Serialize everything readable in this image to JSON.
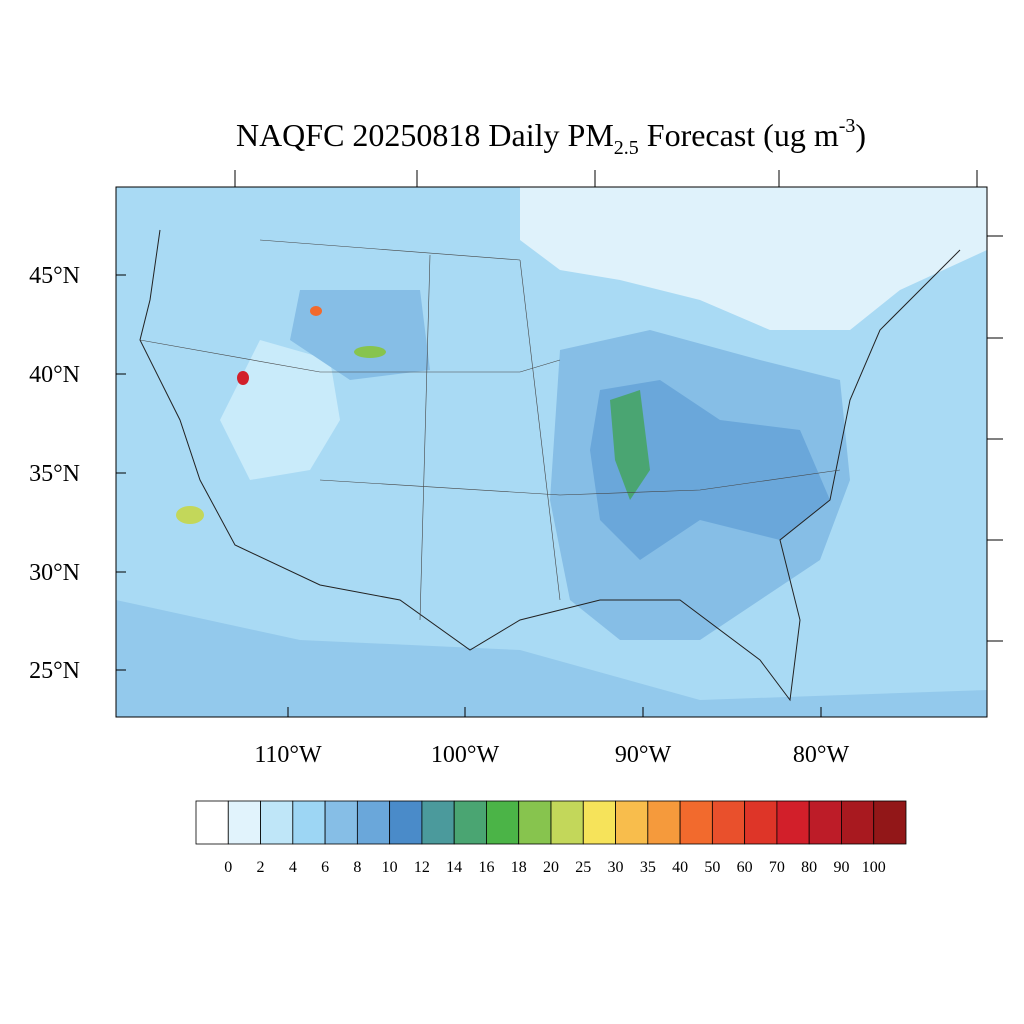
{
  "title": {
    "main": "NAQFC 20250818 Daily PM",
    "sub": "2.5",
    "mid": " Forecast (ug m",
    "sup": "-3",
    "end": ")"
  },
  "map": {
    "lat_labels": [
      "45°N",
      "40°N",
      "35°N",
      "30°N",
      "25°N"
    ],
    "lon_labels": [
      "110°W",
      "100°W",
      "90°W",
      "80°W"
    ]
  },
  "colorbar": {
    "colors": [
      "#ffffff",
      "#e1f3fc",
      "#bfe6f8",
      "#9dd6f4",
      "#86bee6",
      "#6aa7da",
      "#4a8bc9",
      "#4b9a9c",
      "#4aa572",
      "#4bb447",
      "#87c44e",
      "#c3d75a",
      "#f6e35a",
      "#f8bd4c",
      "#f59a3c",
      "#f26a2d",
      "#e9502c",
      "#de3528",
      "#d21f2a",
      "#bd1c28",
      "#a8191f",
      "#921718"
    ],
    "labels": [
      0,
      2,
      4,
      6,
      8,
      10,
      12,
      14,
      16,
      18,
      20,
      25,
      30,
      35,
      40,
      50,
      60,
      70,
      80,
      90,
      100
    ]
  }
}
